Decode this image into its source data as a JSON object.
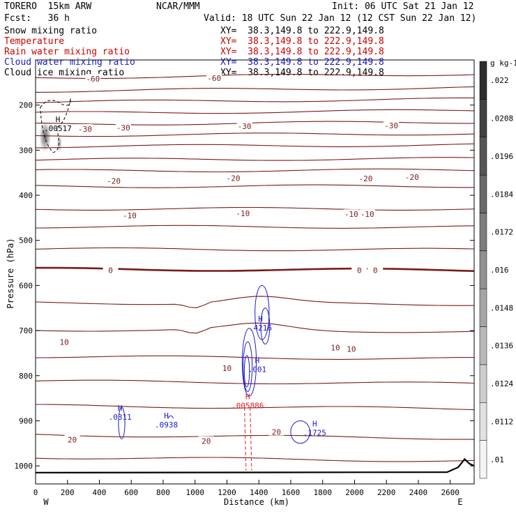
{
  "header": {
    "model": "TORERO  15km ARW",
    "org": "NCAR/MMM",
    "init": "Init: 06 UTC Sat 21 Jan 12",
    "fcst": "Fcst:   36 h",
    "valid": "Valid: 18 UTC Sun 22 Jan 12 (12 CST Sun 22 Jan 12)"
  },
  "fields": [
    {
      "name": "Snow mixing ratio",
      "xy": "XY=  38.3,149.8 to 222.9,149.8",
      "color": "#000000"
    },
    {
      "name": "Temperature",
      "xy": "XY=  38.3,149.8 to 222.9,149.8",
      "color": "#cc0000"
    },
    {
      "name": "Rain water mixing ratio",
      "xy": "XY=  38.3,149.8 to 222.9,149.8",
      "color": "#cc0000"
    },
    {
      "name": "Cloud water mixing ratio",
      "xy": "XY=  38.3,149.8 to 222.9,149.8",
      "color": "#1a1acc"
    },
    {
      "name": "Cloud ice mixing ratio",
      "xy": "XY=  38.3,149.8 to 222.9,149.8",
      "color": "#000000"
    }
  ],
  "colors": {
    "isotherm": "#7a1a1a",
    "freezing": "#7a1a1a",
    "rain": "#dd2222",
    "cloud_water": "#1a1acc",
    "cloud_ice": "#000000",
    "terrain": "#000000"
  },
  "chart_data": {
    "type": "contour",
    "xlabel": "Distance (km)",
    "ylabel": "Pressure (hPa)",
    "xlim": [
      0,
      2750
    ],
    "ylim": [
      1040,
      100
    ],
    "x_ticks": [
      0,
      200,
      400,
      600,
      800,
      1000,
      1200,
      1400,
      1600,
      1800,
      2000,
      2200,
      2400,
      2600
    ],
    "y_ticks": [
      200,
      300,
      400,
      500,
      600,
      700,
      800,
      900,
      1000
    ],
    "endpoints": {
      "left": "W",
      "right": "E"
    },
    "isotherm_levels_hpa": [
      135,
      165,
      190,
      215,
      240,
      265,
      290,
      320,
      345,
      380,
      430,
      470,
      520,
      565,
      640,
      700,
      760,
      815,
      870,
      935,
      985
    ],
    "isotherm_labels": [
      {
        "x": 360,
        "p": 142,
        "text": "-60"
      },
      {
        "x": 1120,
        "p": 140,
        "text": "-60"
      },
      {
        "x": 310,
        "p": 253,
        "text": "-30"
      },
      {
        "x": 550,
        "p": 250,
        "text": "-30"
      },
      {
        "x": 1310,
        "p": 247,
        "text": "-30"
      },
      {
        "x": 2230,
        "p": 245,
        "text": "-30"
      },
      {
        "x": 490,
        "p": 368,
        "text": "-20"
      },
      {
        "x": 1240,
        "p": 362,
        "text": "-20"
      },
      {
        "x": 2070,
        "p": 363,
        "text": "-20"
      },
      {
        "x": 2360,
        "p": 360,
        "text": "-20"
      },
      {
        "x": 590,
        "p": 445,
        "text": "-10"
      },
      {
        "x": 1300,
        "p": 440,
        "text": "-10"
      },
      {
        "x": 1980,
        "p": 442,
        "text": "-10"
      },
      {
        "x": 2080,
        "p": 442,
        "text": "-10"
      },
      {
        "x": 470,
        "p": 566,
        "text": "0"
      },
      {
        "x": 2030,
        "p": 566,
        "text": "0"
      },
      {
        "x": 2130,
        "p": 566,
        "text": "0"
      },
      {
        "x": 180,
        "p": 725,
        "text": "10"
      },
      {
        "x": 1200,
        "p": 783,
        "text": "10"
      },
      {
        "x": 1880,
        "p": 738,
        "text": "10"
      },
      {
        "x": 1980,
        "p": 741,
        "text": "10"
      },
      {
        "x": 230,
        "p": 942,
        "text": "20"
      },
      {
        "x": 1070,
        "p": 945,
        "text": "20"
      },
      {
        "x": 1510,
        "p": 925,
        "text": "20"
      }
    ],
    "maxima": [
      {
        "x": 140,
        "p": 253,
        "value": ".00517",
        "color_key": "cloud_ice"
      },
      {
        "x": 1410,
        "p": 695,
        "value": ".4216",
        "color_key": "cloud_water"
      },
      {
        "x": 1390,
        "p": 787,
        "value": ".001",
        "color_key": "cloud_water"
      },
      {
        "x": 1330,
        "p": 868,
        "value": ".005886",
        "color_key": "rain"
      },
      {
        "x": 530,
        "p": 893,
        "value": ".0311",
        "color_key": "cloud_water"
      },
      {
        "x": 820,
        "p": 910,
        "value": ".0938",
        "color_key": "cloud_water"
      },
      {
        "x": 1750,
        "p": 928,
        "value": ".1725",
        "color_key": "cloud_water"
      }
    ],
    "snow_colorbar": {
      "unit": "g kg-1",
      "levels": [
        ".01",
        ".0112",
        ".0124",
        ".0136",
        ".0148",
        ".016",
        ".0172",
        ".0184",
        ".0196",
        ".0208",
        ".022"
      ]
    },
    "terrain": [
      [
        0,
        1015
      ],
      [
        2580,
        1014
      ],
      [
        2650,
        1003
      ],
      [
        2690,
        985
      ],
      [
        2720,
        995
      ],
      [
        2750,
        1000
      ]
    ]
  }
}
